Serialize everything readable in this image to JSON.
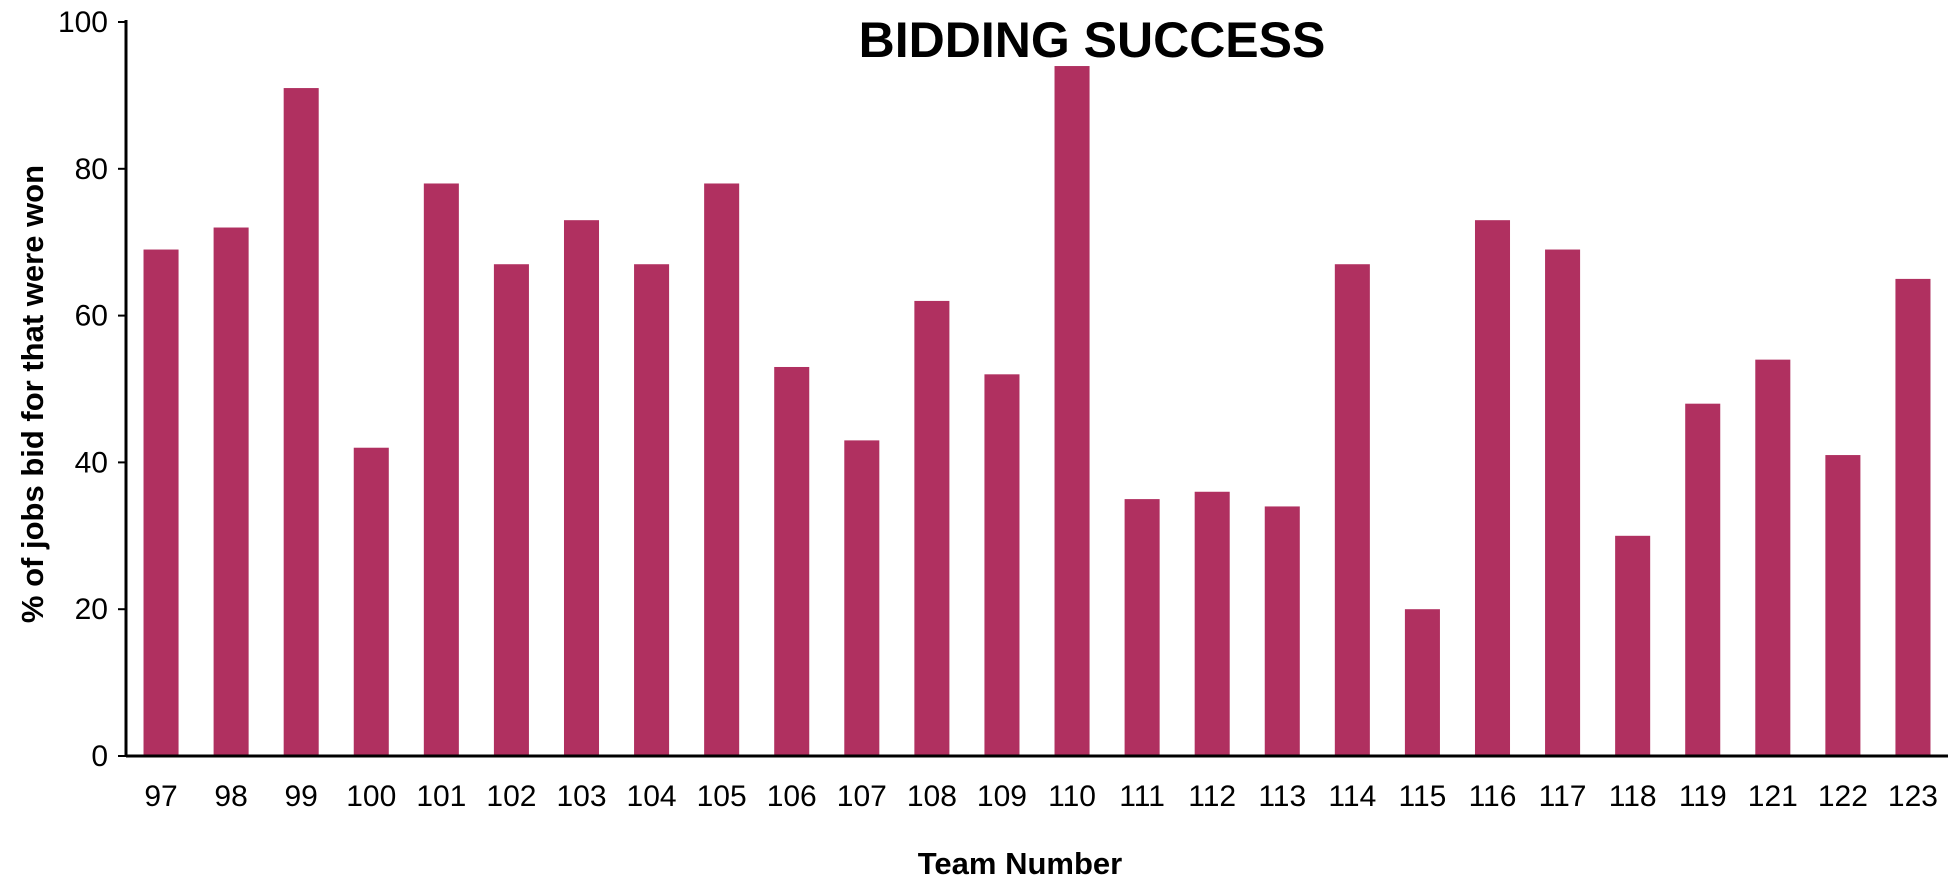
{
  "chart_data": {
    "type": "bar",
    "title": "BIDDING SUCCESS",
    "xlabel": "Team Number",
    "ylabel": "% of jobs bid for that were won",
    "ylim": [
      0,
      100
    ],
    "yticks": [
      0,
      20,
      40,
      60,
      80,
      100
    ],
    "grid": false,
    "legend": "none",
    "bar_color": "#B03060",
    "categories": [
      "97",
      "98",
      "99",
      "100",
      "101",
      "102",
      "103",
      "104",
      "105",
      "106",
      "107",
      "108",
      "109",
      "110",
      "111",
      "112",
      "113",
      "114",
      "115",
      "116",
      "117",
      "118",
      "119",
      "121",
      "122",
      "123"
    ],
    "series": [
      {
        "values": [
          69,
          72,
          91,
          42,
          78,
          67,
          73,
          67,
          78,
          53,
          43,
          62,
          52,
          94,
          35,
          36,
          34,
          67,
          20,
          73,
          69,
          30,
          48,
          54,
          41,
          65
        ]
      }
    ]
  }
}
